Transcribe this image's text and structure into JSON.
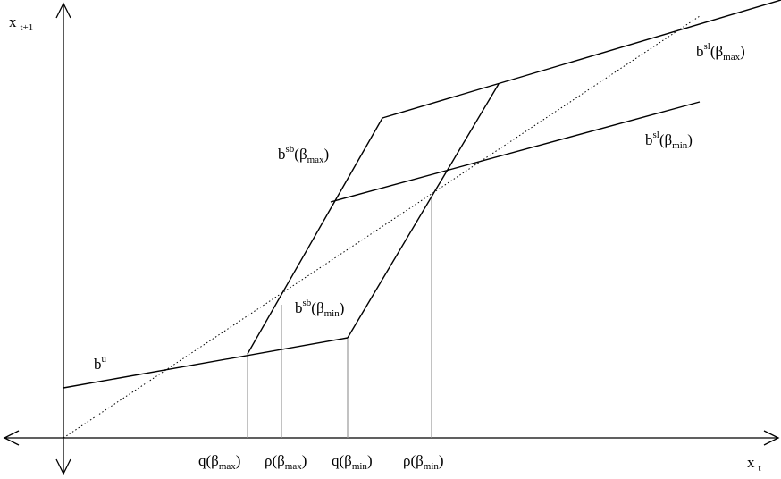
{
  "axes": {
    "y_label": {
      "base": "x",
      "sub": "t+1"
    },
    "x_label": {
      "base": "x",
      "sub": "t"
    }
  },
  "curve_labels": {
    "bu": {
      "base": "b",
      "sup": "u"
    },
    "bsl_max": {
      "base": "b",
      "sup": "sl",
      "open": "(β",
      "sub": "max",
      "close": ")"
    },
    "bsl_min": {
      "base": "b",
      "sup": "sl",
      "open": "(β",
      "sub": "min",
      "close": ")"
    },
    "bsb_max": {
      "base": "b",
      "sup": "sb",
      "open": "(β",
      "sub": "max",
      "close": ")"
    },
    "bsb_min": {
      "base": "b",
      "sup": "sb",
      "open": "(β",
      "sub": "min",
      "close": ")"
    }
  },
  "tick_labels": {
    "q_max": {
      "open": "q(β",
      "sub": "max",
      "close": ")"
    },
    "rho_max": {
      "open": "ρ(β",
      "sub": "max",
      "close": ")"
    },
    "q_min": {
      "open": "q(β",
      "sub": "min",
      "close": ")"
    },
    "rho_min": {
      "open": "ρ(β",
      "sub": "min",
      "close": ")"
    }
  },
  "colors": {
    "line": "#000000",
    "guide": "#999999"
  }
}
